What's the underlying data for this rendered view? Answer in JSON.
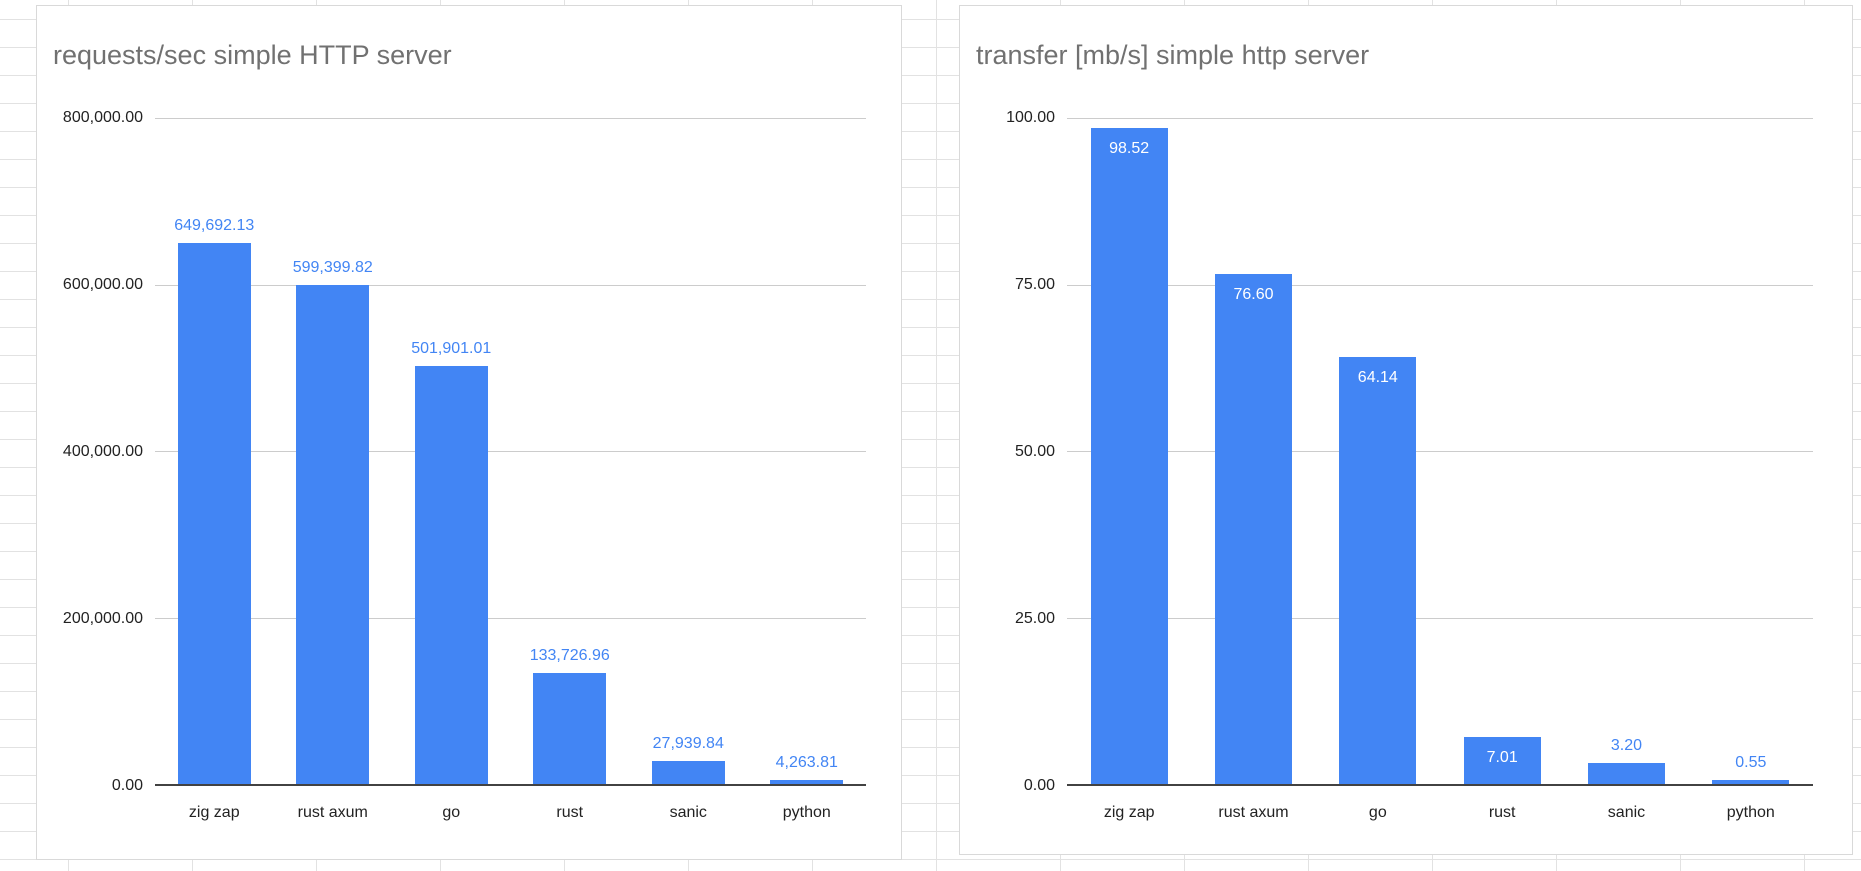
{
  "accent_color": "#4285f4",
  "chart_data": [
    {
      "type": "bar",
      "title": "requests/sec simple HTTP server",
      "categories": [
        "zig zap",
        "rust axum",
        "go",
        "rust",
        "sanic",
        "python"
      ],
      "values": [
        649692.13,
        599399.82,
        501901.01,
        133726.96,
        27939.84,
        4263.81
      ],
      "value_labels": [
        "649,692.13",
        "599,399.82",
        "501,901.01",
        "133,726.96",
        "27,939.84",
        "4,263.81"
      ],
      "label_positions": [
        "above",
        "above",
        "above",
        "above",
        "above",
        "above"
      ],
      "ylim": [
        0,
        800000
      ],
      "yticks": [
        "800,000.00",
        "600,000.00",
        "400,000.00",
        "200,000.00",
        "0.00"
      ],
      "ytick_values": [
        800000,
        600000,
        400000,
        200000,
        0
      ],
      "bar_color": "#4285f4",
      "label_color": "#4285f4",
      "grid": "horizontal"
    },
    {
      "type": "bar",
      "title": "transfer [mb/s] simple http server",
      "categories": [
        "zig zap",
        "rust axum",
        "go",
        "rust",
        "sanic",
        "python"
      ],
      "values": [
        98.52,
        76.6,
        64.14,
        7.01,
        3.2,
        0.55
      ],
      "value_labels": [
        "98.52",
        "76.60",
        "64.14",
        "7.01",
        "3.20",
        "0.55"
      ],
      "label_positions": [
        "inside",
        "inside",
        "inside",
        "inside",
        "above",
        "above"
      ],
      "ylim": [
        0,
        100
      ],
      "yticks": [
        "100.00",
        "75.00",
        "50.00",
        "25.00",
        "0.00"
      ],
      "ytick_values": [
        100,
        75,
        50,
        25,
        0
      ],
      "bar_color": "#4285f4",
      "label_color": "#4285f4",
      "grid": "horizontal"
    }
  ]
}
